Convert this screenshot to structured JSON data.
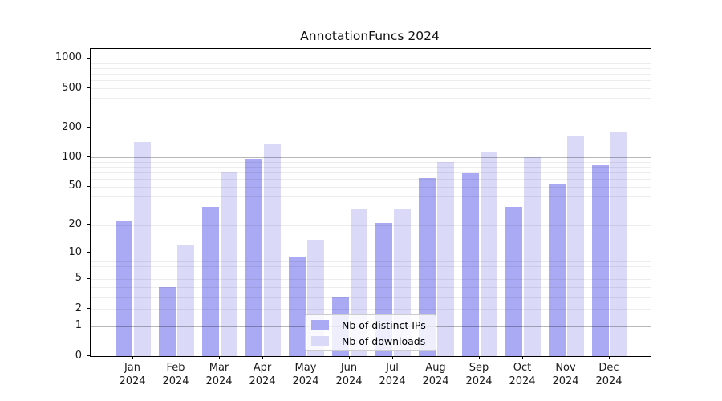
{
  "page_title": "AnnotationFuncs 2024",
  "chart_data": {
    "type": "bar",
    "title": "AnnotationFuncs 2024",
    "categories": [
      "Jan",
      "Feb",
      "Mar",
      "Apr",
      "May",
      "Jun",
      "Jul",
      "Aug",
      "Sep",
      "Oct",
      "Nov",
      "Dec"
    ],
    "category_year": "2024",
    "series": [
      {
        "name": "Nb of distinct IPs",
        "color": "#a9a9f4",
        "values": [
          22,
          4,
          31,
          97,
          9,
          3,
          21,
          62,
          69,
          31,
          53,
          83
        ]
      },
      {
        "name": "Nb of downloads",
        "color": "#dadaf8",
        "values": [
          142,
          12,
          70,
          135,
          14,
          30,
          30,
          89,
          112,
          100,
          166,
          180
        ]
      }
    ],
    "yscale": "log1p",
    "yticks": [
      0,
      1,
      2,
      5,
      10,
      20,
      50,
      100,
      200,
      500,
      1000
    ],
    "major_gridlines": [
      1,
      10,
      100,
      1000
    ],
    "ylim": [
      0,
      1250
    ],
    "xlabel": "",
    "ylabel": "",
    "grid": "horizontal major + log minor",
    "legend_position": "lower center inside plot"
  },
  "legend": {
    "items": [
      {
        "label": "Nb of distinct IPs"
      },
      {
        "label": "Nb of downloads"
      }
    ]
  }
}
